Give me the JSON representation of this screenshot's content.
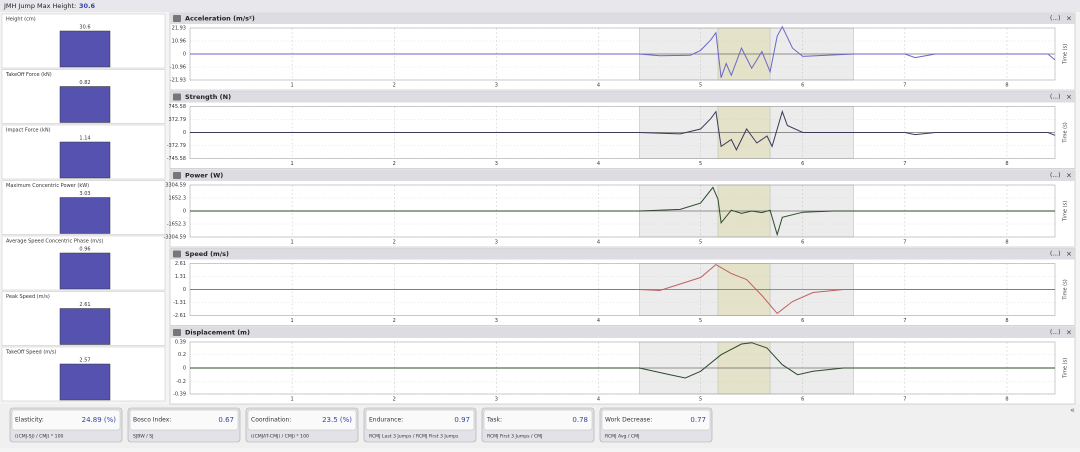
{
  "header": {
    "label": "JMH Jump Max Height:",
    "value": "30.6"
  },
  "side_panels": [
    {
      "label": "Height (cm)",
      "value": 30.6
    },
    {
      "label": "TakeOff Force (kN)",
      "value": 0.82
    },
    {
      "label": "Impact Force (kN)",
      "value": 1.14
    },
    {
      "label": "Maximum Concentric Power (kW)",
      "value": 3.03
    },
    {
      "label": "Average Speed Concentric Phase (m/s)",
      "value": 0.96
    },
    {
      "label": "Peak Speed (m/s)",
      "value": 2.61
    },
    {
      "label": "TakeOff Speed (m/s)",
      "value": 2.57
    }
  ],
  "charts": [
    {
      "type": "line",
      "title": "Acceleration (m/s²)",
      "menu": "(...)",
      "close": "×",
      "axis_label": "Time (s)",
      "color": "#6b66c9",
      "xlim": [
        0,
        8.47
      ],
      "xticks": [
        1,
        2,
        3,
        4,
        5,
        6,
        7,
        8
      ],
      "ylim": [
        -21.93,
        21.93
      ],
      "yticks": [
        21.93,
        10.96,
        0,
        -10.96,
        -21.93
      ],
      "regions": [
        {
          "from": 4.4,
          "to": 6.5,
          "color": "#ececec"
        },
        {
          "from": 5.17,
          "to": 5.68,
          "color": "#e4e2c8"
        }
      ],
      "x": [
        0,
        4.4,
        4.6,
        4.9,
        5.0,
        5.1,
        5.15,
        5.2,
        5.25,
        5.3,
        5.4,
        5.5,
        5.6,
        5.68,
        5.75,
        5.8,
        5.9,
        6.0,
        6.5,
        7.0,
        7.1,
        7.3,
        8.4,
        8.47
      ],
      "y": [
        0,
        0,
        -1.5,
        -1,
        3,
        12,
        18,
        -20,
        -8,
        -18,
        5,
        -12,
        2,
        -15,
        15,
        23,
        5,
        -2,
        0,
        0,
        -3,
        0,
        0,
        -5
      ]
    },
    {
      "type": "line",
      "title": "Strength (N)",
      "menu": "(...)",
      "close": "×",
      "axis_label": "Time (s)",
      "color": "#3a3a5a",
      "xlim": [
        0,
        8.47
      ],
      "xticks": [
        1,
        2,
        3,
        4,
        5,
        6,
        7,
        8
      ],
      "ylim": [
        -745.58,
        745.58
      ],
      "yticks": [
        745.58,
        372.79,
        0,
        -372.79,
        -745.58
      ],
      "regions": [
        {
          "from": 4.4,
          "to": 6.5,
          "color": "#ececec"
        },
        {
          "from": 5.17,
          "to": 5.68,
          "color": "#e4e2c8"
        }
      ],
      "x": [
        0,
        4.4,
        4.8,
        5.0,
        5.1,
        5.15,
        5.2,
        5.3,
        5.35,
        5.45,
        5.55,
        5.65,
        5.7,
        5.8,
        5.85,
        6.0,
        7.0,
        7.1,
        7.3,
        8.4,
        8.47
      ],
      "y": [
        0,
        0,
        -40,
        100,
        400,
        600,
        -400,
        -200,
        -500,
        100,
        -300,
        -100,
        -400,
        600,
        200,
        0,
        0,
        -60,
        0,
        0,
        -80
      ]
    },
    {
      "type": "line",
      "title": "Power (W)",
      "menu": "(...)",
      "close": "×",
      "axis_label": "Time (s)",
      "color": "#2e4a2e",
      "xlim": [
        0,
        8.47
      ],
      "xticks": [
        1,
        2,
        3,
        4,
        5,
        6,
        7,
        8
      ],
      "ylim": [
        -3304.59,
        3304.59
      ],
      "yticks": [
        3304.59,
        1652.3,
        0,
        -1652.3,
        -3304.59
      ],
      "regions": [
        {
          "from": 4.4,
          "to": 6.5,
          "color": "#ececec"
        },
        {
          "from": 5.17,
          "to": 5.68,
          "color": "#e4e2c8"
        }
      ],
      "x": [
        0,
        4.4,
        4.8,
        5.0,
        5.12,
        5.17,
        5.2,
        5.3,
        5.4,
        5.5,
        5.6,
        5.68,
        5.75,
        5.8,
        6.0,
        6.3,
        8.47
      ],
      "y": [
        0,
        0,
        200,
        1000,
        3000,
        1500,
        -1500,
        100,
        -300,
        0,
        -200,
        100,
        -3000,
        -800,
        -150,
        0,
        0
      ]
    },
    {
      "type": "line",
      "title": "Speed (m/s)",
      "menu": "(...)",
      "close": "×",
      "axis_label": "Time (s)",
      "color": "#c06060",
      "xlim": [
        0,
        8.47
      ],
      "xticks": [
        1,
        2,
        3,
        4,
        5,
        6,
        7,
        8
      ],
      "ylim": [
        -2.61,
        2.61
      ],
      "yticks": [
        2.61,
        1.31,
        0,
        -1.31,
        -2.61
      ],
      "regions": [
        {
          "from": 4.4,
          "to": 6.5,
          "color": "#ececec"
        },
        {
          "from": 5.17,
          "to": 5.68,
          "color": "#e4e2c8"
        }
      ],
      "x": [
        0,
        4.4,
        4.6,
        5.0,
        5.15,
        5.3,
        5.45,
        5.6,
        5.75,
        5.9,
        6.1,
        6.4,
        8.47
      ],
      "y": [
        0,
        0,
        -0.1,
        1.2,
        2.5,
        1.6,
        1.0,
        -0.6,
        -2.4,
        -1.2,
        -0.3,
        0,
        0
      ]
    },
    {
      "type": "line",
      "title": "Displacement (m)",
      "menu": "(...)",
      "close": "×",
      "axis_label": "Time (s)",
      "color": "#2e4a2e",
      "xlim": [
        0,
        8.47
      ],
      "xticks": [
        1,
        2,
        3,
        4,
        5,
        6,
        7,
        8
      ],
      "ylim": [
        -0.39,
        0.39
      ],
      "yticks": [
        0.39,
        0.2,
        0,
        -0.2,
        -0.39
      ],
      "regions": [
        {
          "from": 4.4,
          "to": 6.5,
          "color": "#ececec"
        },
        {
          "from": 5.17,
          "to": 5.68,
          "color": "#e4e2c8"
        }
      ],
      "x": [
        0,
        4.4,
        4.7,
        4.85,
        5.0,
        5.2,
        5.4,
        5.5,
        5.65,
        5.8,
        5.95,
        6.1,
        6.4,
        8.47
      ],
      "y": [
        0,
        0,
        -0.1,
        -0.15,
        -0.05,
        0.2,
        0.36,
        0.38,
        0.3,
        0.05,
        -0.1,
        -0.05,
        0,
        0
      ]
    }
  ],
  "metrics": [
    {
      "label": "Elasticity:",
      "value": "24.89 (%)",
      "formula": "((CMJ-SJ) / CMJ) * 100"
    },
    {
      "label": "Bosco Index:",
      "value": "0.67",
      "formula": "SJBW / SJ"
    },
    {
      "label": "Coordination:",
      "value": "23.5 (%)",
      "formula": "((CMJAT-CMJ) / CMJ) * 100"
    },
    {
      "label": "Endurance:",
      "value": "0.97",
      "formula": "RCMJ Last 3 Jumps / RCMJ First 3 Jumps"
    },
    {
      "label": "Task:",
      "value": "0.78",
      "formula": "RCMJ First 3 Jumps / CMJ"
    },
    {
      "label": "Work Decrease:",
      "value": "0.77",
      "formula": "RCMJ Avg / CMJ"
    }
  ]
}
